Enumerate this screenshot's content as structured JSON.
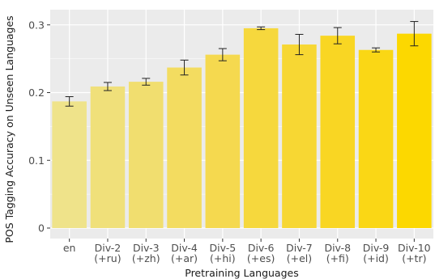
{
  "chart_data": {
    "type": "bar",
    "xlabel": "Pretraining Languages",
    "ylabel": "POS Tagging Accuracy on Unseen Languages",
    "ylim": [
      0,
      0.32
    ],
    "yticks": [
      0,
      0.1,
      0.2,
      0.3
    ],
    "ytick_labels": [
      "0",
      "0.1",
      "0.2",
      "0.3"
    ],
    "grid": true,
    "legend": "none",
    "categories": [
      {
        "line1": "en",
        "line2": ""
      },
      {
        "line1": "Div-2",
        "line2": "(+ru)"
      },
      {
        "line1": "Div-3",
        "line2": "(+zh)"
      },
      {
        "line1": "Div-4",
        "line2": "(+ar)"
      },
      {
        "line1": "Div-5",
        "line2": "(+hi)"
      },
      {
        "line1": "Div-6",
        "line2": "(+es)"
      },
      {
        "line1": "Div-7",
        "line2": "(+el)"
      },
      {
        "line1": "Div-8",
        "line2": "(+fi)"
      },
      {
        "line1": "Div-9",
        "line2": "(+id)"
      },
      {
        "line1": "Div-10",
        "line2": "(+tr)"
      }
    ],
    "values": [
      0.187,
      0.209,
      0.216,
      0.237,
      0.256,
      0.295,
      0.271,
      0.284,
      0.263,
      0.287
    ],
    "error": [
      0.007,
      0.006,
      0.005,
      0.011,
      0.009,
      0.002,
      0.015,
      0.012,
      0.003,
      0.018
    ],
    "colors": [
      "#efe38a",
      "#f0e07a",
      "#f1de6f",
      "#f3dc60",
      "#f5d94f",
      "#f6d83d",
      "#f7d733",
      "#f9d623",
      "#fad715",
      "#fcd800"
    ],
    "panel_color": "#ebebeb",
    "grid_color": "#ffffff"
  }
}
